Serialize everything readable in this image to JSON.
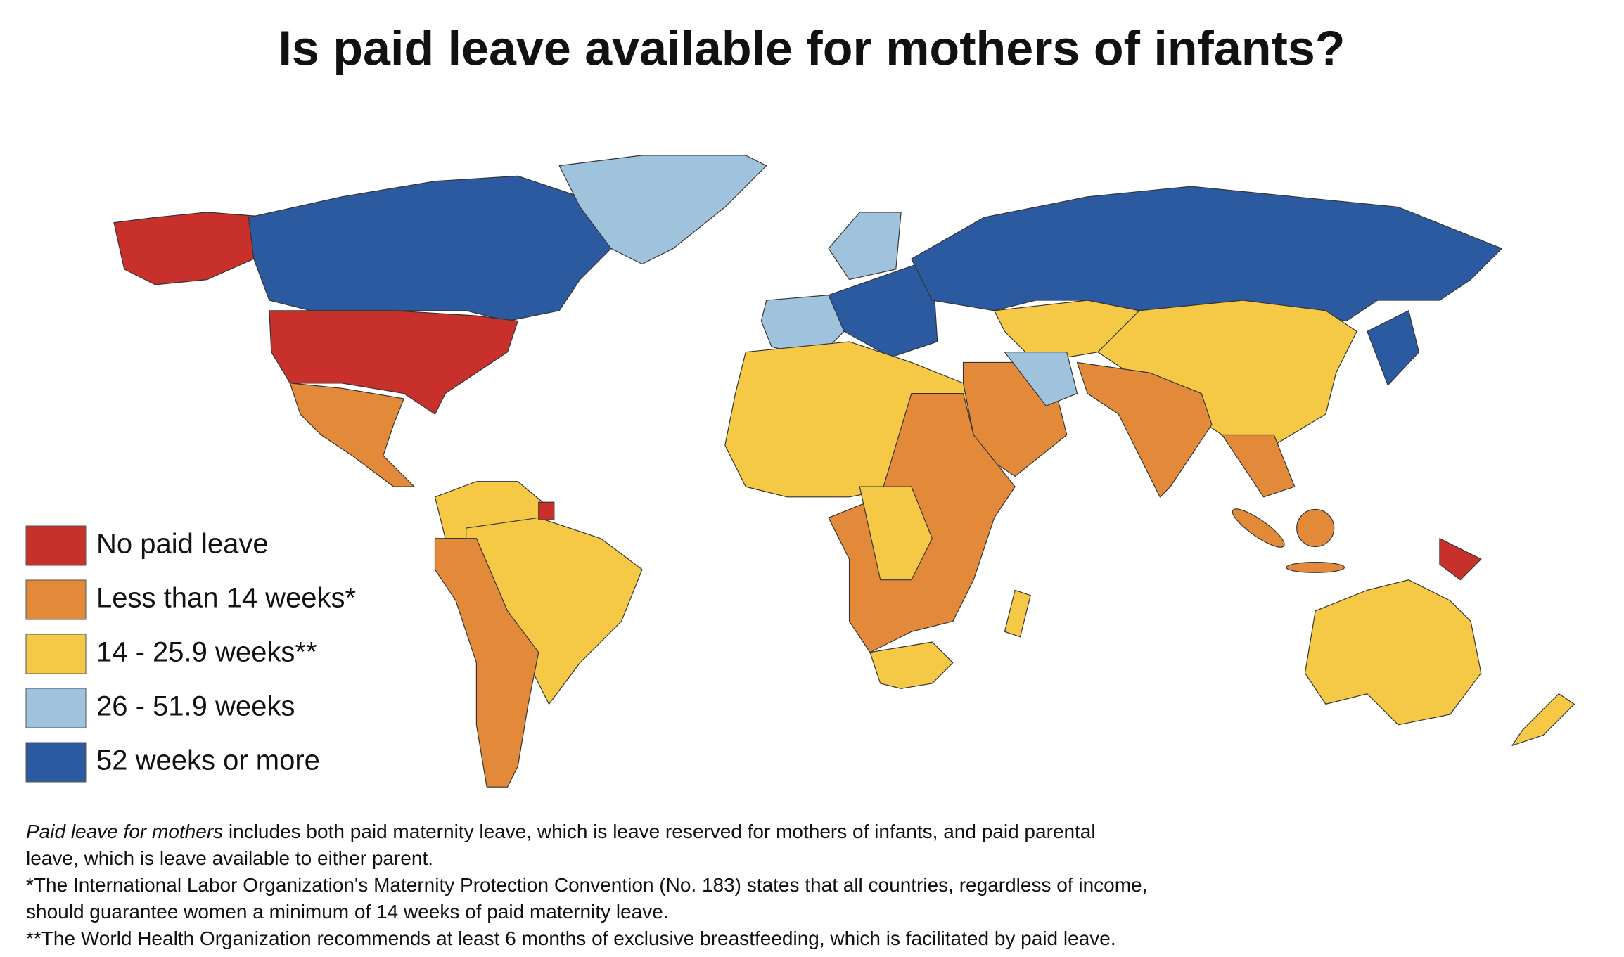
{
  "title": "Is paid leave available for mothers of infants?",
  "legend": [
    {
      "label": "No paid leave",
      "color": "#c8312b"
    },
    {
      "label": "Less than 14 weeks*",
      "color": "#e38a3a"
    },
    {
      "label": "14 - 25.9 weeks**",
      "color": "#f5c945"
    },
    {
      "label": "26 - 51.9 weeks",
      "color": "#9fc3dd"
    },
    {
      "label": "52 weeks or more",
      "color": "#2c5aa0"
    }
  ],
  "note_lead": "Paid leave for mothers",
  "notes": [
    " includes both paid maternity leave, which is leave reserved for mothers of infants, and paid parental",
    "leave, which is leave available to either parent.",
    "*The International Labor Organization's Maternity Protection Convention (No. 183) states that all countries, regardless of income,",
    "should guarantee women a minimum of 14 weeks of paid maternity leave.",
    "**The World Health Organization recommends at least 6 months of exclusive breastfeeding, which is facilitated by paid leave."
  ]
}
